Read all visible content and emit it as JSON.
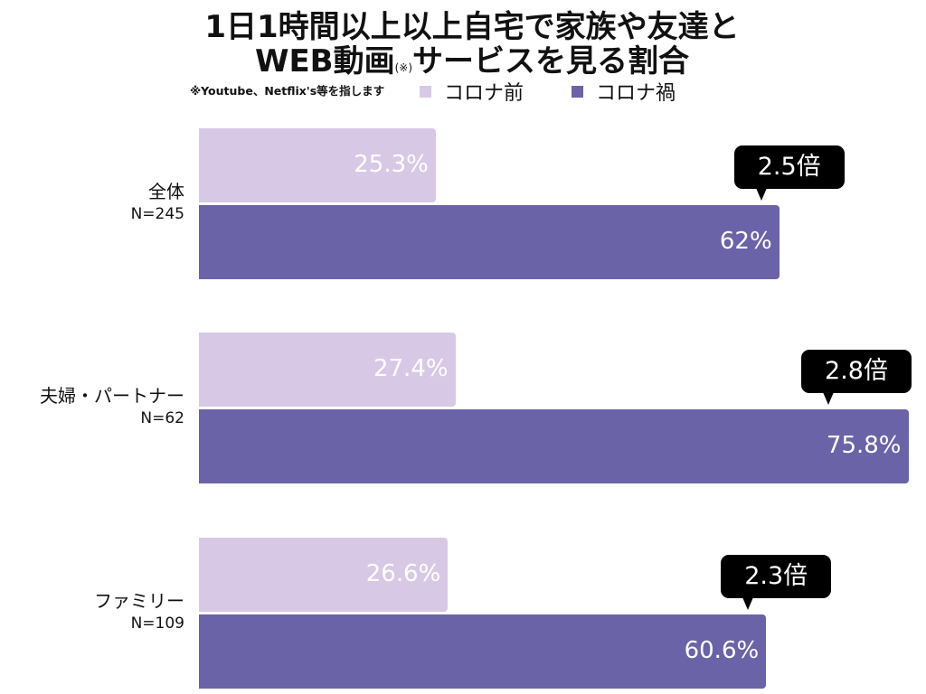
{
  "chart_data": {
    "type": "bar",
    "orientation": "horizontal",
    "title_line1": "1日1時間以上以上自宅で家族や友達と",
    "title_line2_main": "WEB動画",
    "title_line2_mark": "(※)",
    "title_line2_rest": "サービスを見る割合",
    "footnote": "※Youtube、Netflix's等を指します",
    "xlim": [
      0,
      100
    ],
    "unit": "%",
    "colors": {
      "before": "#d7c9e6",
      "during": "#6a63a8",
      "callout": "#000000"
    },
    "series": [
      {
        "name": "コロナ前",
        "values": [
          25.3,
          27.4,
          26.6
        ],
        "labels": [
          "25.3%",
          "27.4%",
          "26.6%"
        ]
      },
      {
        "name": "コロナ禍",
        "values": [
          62,
          75.8,
          60.6
        ],
        "labels": [
          "62%",
          "75.8%",
          "60.6%"
        ]
      }
    ],
    "categories": [
      {
        "label": "全体",
        "n": "N=245",
        "ratio": "2.5倍"
      },
      {
        "label": "夫婦・パートナー",
        "n": "N=62",
        "ratio": "2.8倍"
      },
      {
        "label": "ファミリー",
        "n": "N=109",
        "ratio": "2.3倍"
      }
    ]
  }
}
